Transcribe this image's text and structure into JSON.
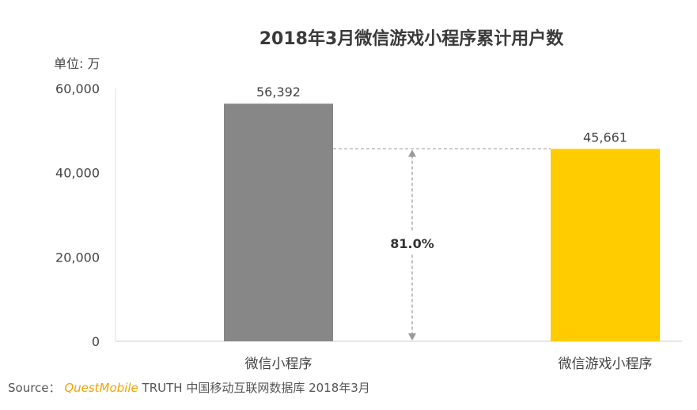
{
  "chart_data": {
    "type": "bar",
    "title": "2018年3月微信游戏小程序累计用户数",
    "unit_label": "单位: 万",
    "categories": [
      "微信小程序",
      "微信游戏小程序"
    ],
    "values": [
      56392,
      45661
    ],
    "value_labels": [
      "56,392",
      "45,661"
    ],
    "bar_colors": [
      "#878787",
      "#ffcc00"
    ],
    "ylim": [
      0,
      60000
    ],
    "yticks": [
      0,
      20000,
      40000,
      60000
    ],
    "ytick_labels": [
      "0",
      "20,000",
      "40,000",
      "60,000"
    ],
    "grid": false,
    "annotation": "81.0%"
  },
  "source": {
    "prefix": "Source：",
    "brand": "QuestMobile",
    "text": "TRUTH 中国移动互联网数据库 2018年3月"
  }
}
